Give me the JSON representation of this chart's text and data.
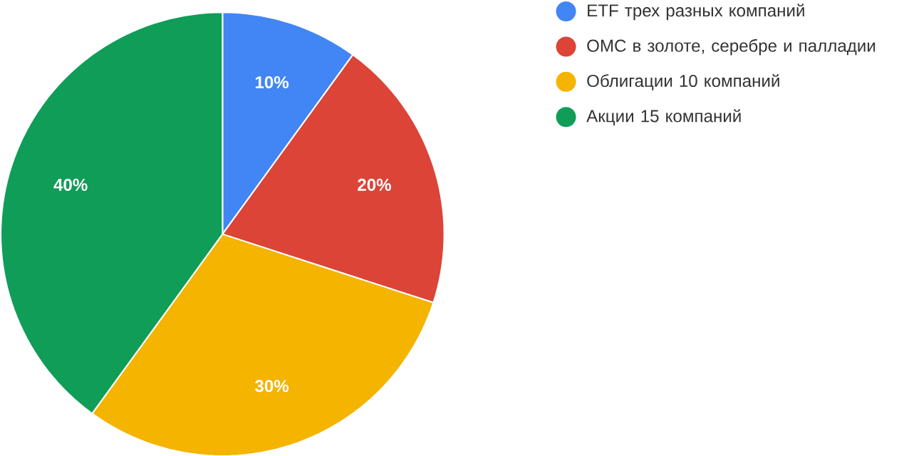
{
  "chart_data": {
    "type": "pie",
    "categories": [
      "ETF трех разных компаний",
      "ОМС в золоте, серебре и палладии",
      "Облигации 10 компаний",
      "Акции 15 компаний"
    ],
    "values": [
      10,
      20,
      30,
      40
    ],
    "colors": [
      "#4285f4",
      "#db4437",
      "#f4b400",
      "#0f9d58"
    ],
    "value_labels": [
      "10%",
      "20%",
      "30%",
      "40%"
    ],
    "legend": "right"
  }
}
